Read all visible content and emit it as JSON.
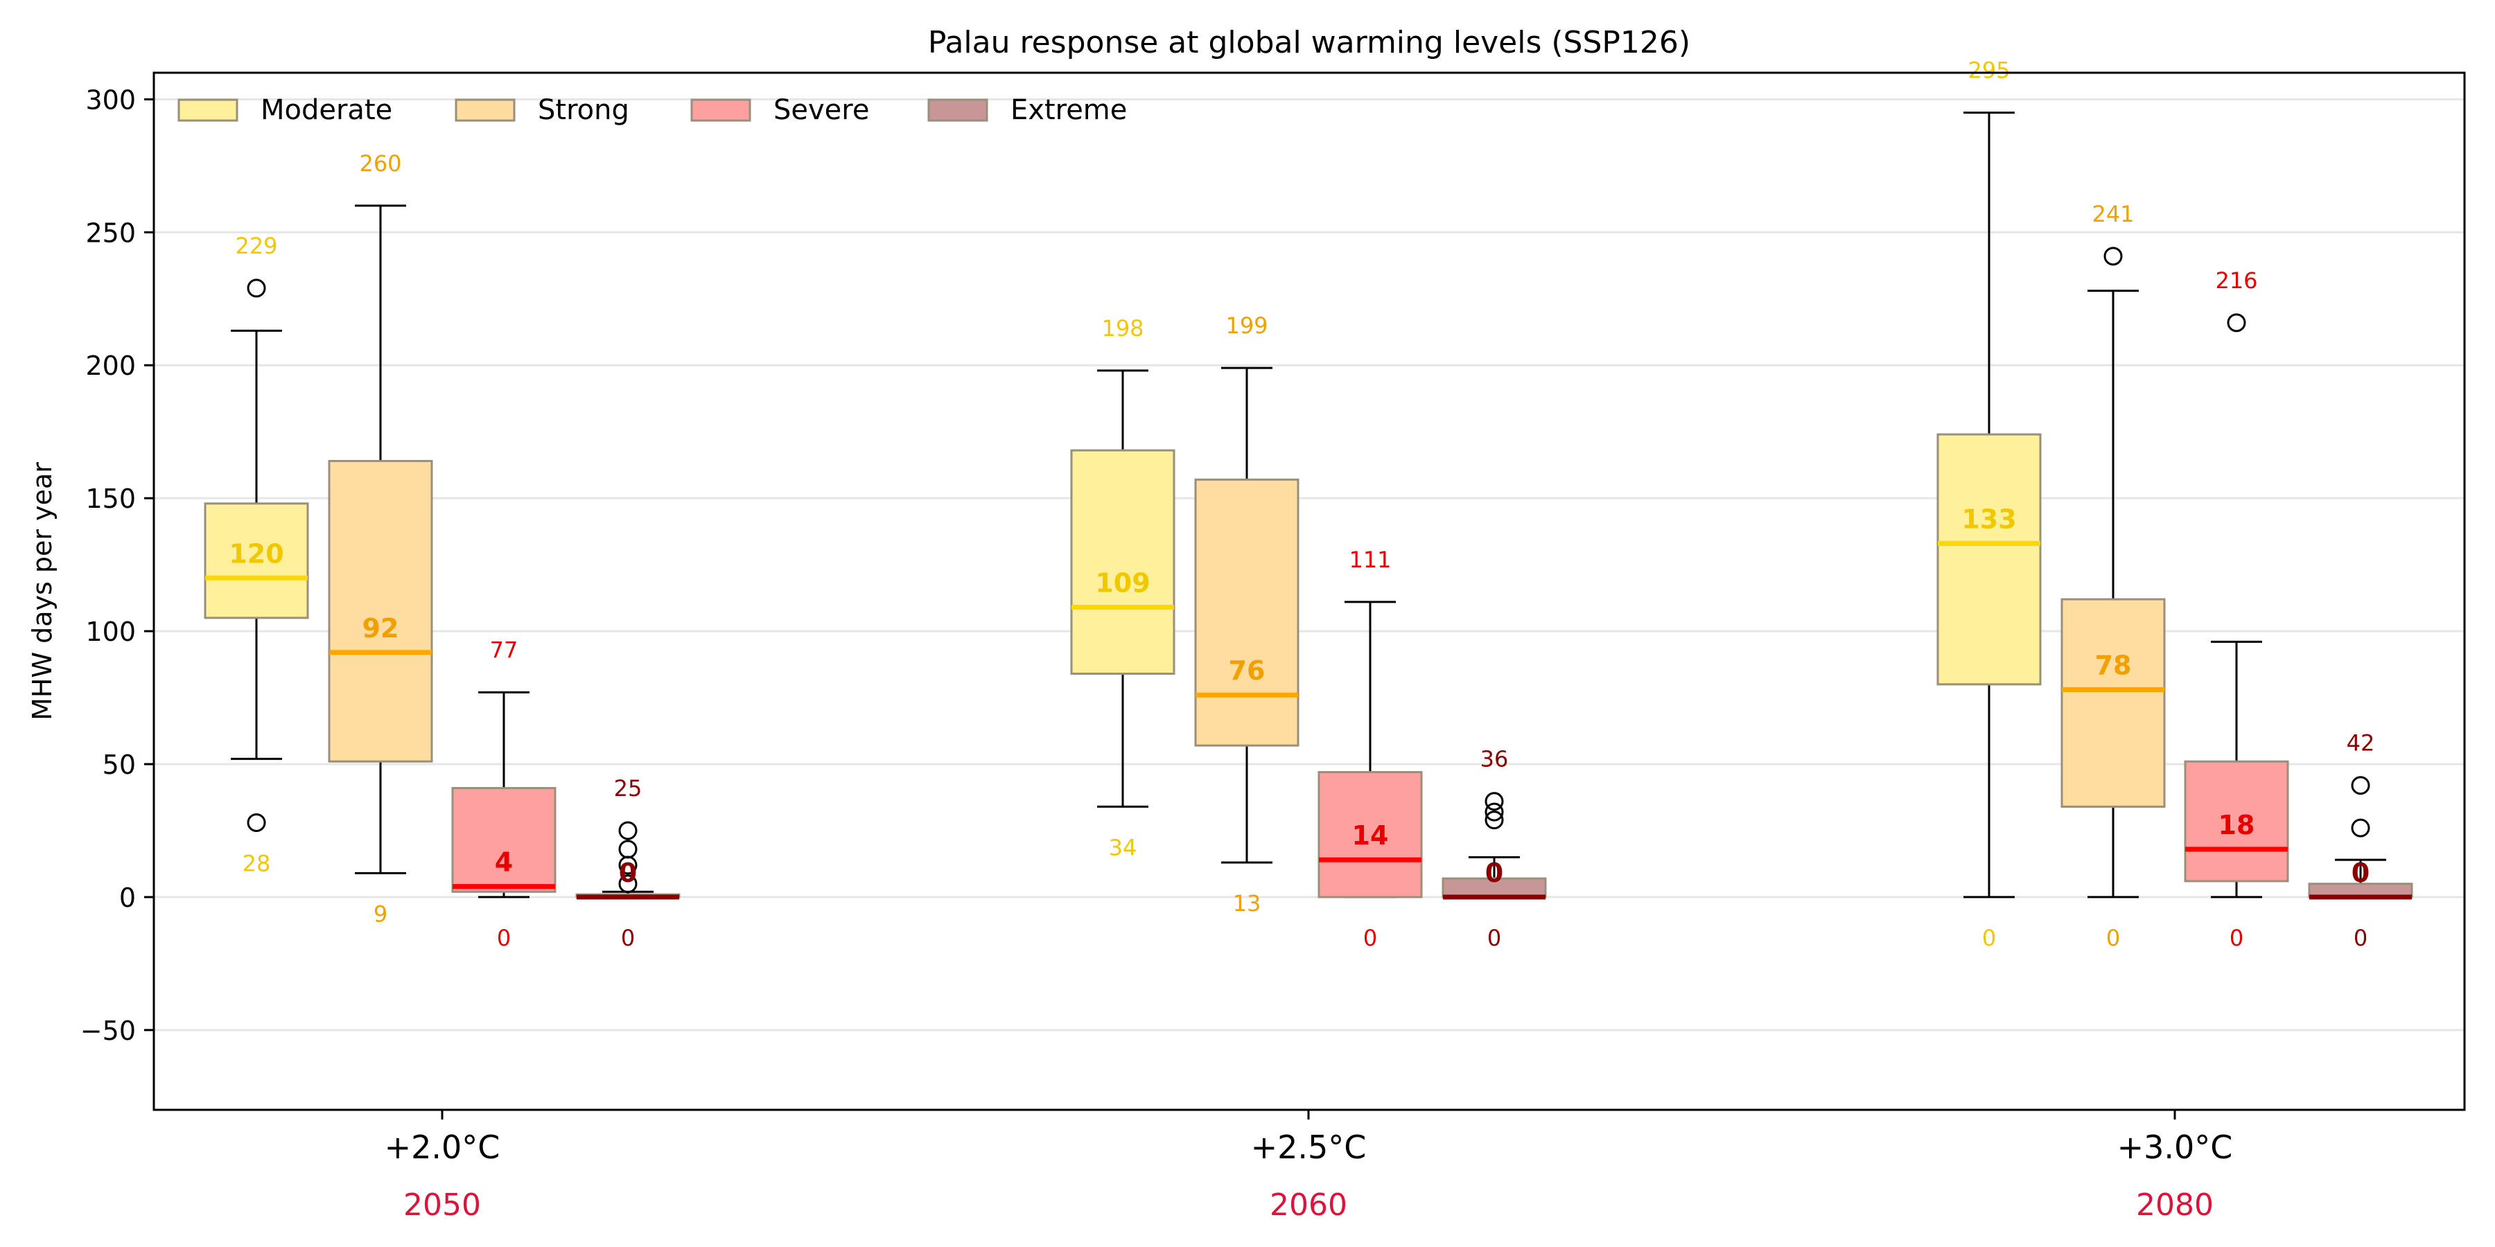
{
  "chart_data": {
    "type": "boxplot",
    "title": "Palau response at global warming levels (SSP126)",
    "ylabel": "MHW days per year",
    "xlabel": "",
    "ylim": [
      -80,
      310
    ],
    "yticks": [
      -50,
      0,
      50,
      100,
      150,
      200,
      250,
      300
    ],
    "grid": "horizontal",
    "legend_position": "top-left",
    "categories": [
      {
        "label": "+2.0°C",
        "year": "2050"
      },
      {
        "label": "+2.5°C",
        "year": "2060"
      },
      {
        "label": "+3.0°C",
        "year": "2080"
      }
    ],
    "series": [
      {
        "name": "Moderate",
        "fill": "#fff09b",
        "median_color": "#ffd700",
        "label_color": "#f0c800"
      },
      {
        "name": "Strong",
        "fill": "#ffdca0",
        "median_color": "#ffa500",
        "label_color": "#f0a000"
      },
      {
        "name": "Severe",
        "fill": "#ffa0a0",
        "median_color": "#ff0000",
        "label_color": "#e60000"
      },
      {
        "name": "Extreme",
        "fill": "#c89696",
        "median_color": "#8b0000",
        "label_color": "#8b0000"
      }
    ],
    "groups": [
      {
        "category": "+2.0°C",
        "boxes": [
          {
            "series": "Moderate",
            "min": 52,
            "q1": 105,
            "median": 120,
            "q3": 148,
            "max": 213,
            "outliers": [
              229,
              28
            ],
            "top_label": "229",
            "bottom_label": "28",
            "median_label": "120"
          },
          {
            "series": "Strong",
            "min": 9,
            "q1": 51,
            "median": 92,
            "q3": 164,
            "max": 260,
            "outliers": [],
            "top_label": "260",
            "bottom_label": "9",
            "median_label": "92"
          },
          {
            "series": "Severe",
            "min": 0,
            "q1": 2,
            "median": 4,
            "q3": 41,
            "max": 77,
            "outliers": [],
            "top_label": "77",
            "bottom_label": "0",
            "median_label": "4"
          },
          {
            "series": "Extreme",
            "min": 0,
            "q1": 0,
            "median": 0,
            "q3": 1,
            "max": 2,
            "outliers": [
              25,
              18,
              12,
              5
            ],
            "top_label": "25",
            "bottom_label": "0",
            "median_label": "0"
          }
        ]
      },
      {
        "category": "+2.5°C",
        "boxes": [
          {
            "series": "Moderate",
            "min": 34,
            "q1": 84,
            "median": 109,
            "q3": 168,
            "max": 198,
            "outliers": [],
            "top_label": "198",
            "bottom_label": "34",
            "median_label": "109"
          },
          {
            "series": "Strong",
            "min": 13,
            "q1": 57,
            "median": 76,
            "q3": 157,
            "max": 199,
            "outliers": [],
            "top_label": "199",
            "bottom_label": "13",
            "median_label": "76"
          },
          {
            "series": "Severe",
            "min": 0,
            "q1": 0,
            "median": 14,
            "q3": 47,
            "max": 111,
            "outliers": [],
            "top_label": "111",
            "bottom_label": "0",
            "median_label": "14"
          },
          {
            "series": "Extreme",
            "min": 0,
            "q1": 0,
            "median": 0,
            "q3": 7,
            "max": 15,
            "outliers": [
              36,
              32,
              29
            ],
            "top_label": "36",
            "bottom_label": "0",
            "median_label": "0"
          }
        ]
      },
      {
        "category": "+3.0°C",
        "boxes": [
          {
            "series": "Moderate",
            "min": 0,
            "q1": 80,
            "median": 133,
            "q3": 174,
            "max": 295,
            "outliers": [],
            "top_label": "295",
            "bottom_label": "0",
            "median_label": "133"
          },
          {
            "series": "Strong",
            "min": 0,
            "q1": 34,
            "median": 78,
            "q3": 112,
            "max": 228,
            "outliers": [
              241
            ],
            "top_label": "241",
            "bottom_label": "0",
            "median_label": "78"
          },
          {
            "series": "Severe",
            "min": 0,
            "q1": 6,
            "median": 18,
            "q3": 51,
            "max": 96,
            "outliers": [
              216
            ],
            "top_label": "216",
            "bottom_label": "0",
            "median_label": "18"
          },
          {
            "series": "Extreme",
            "min": 0,
            "q1": 0,
            "median": 0,
            "q3": 5,
            "max": 14,
            "outliers": [
              42,
              26
            ],
            "top_label": "42",
            "bottom_label": "0",
            "median_label": "0"
          }
        ]
      }
    ]
  },
  "colors": {
    "year_label": "#dc143c",
    "axis": "#000000",
    "grid": "#e6e6e6"
  }
}
